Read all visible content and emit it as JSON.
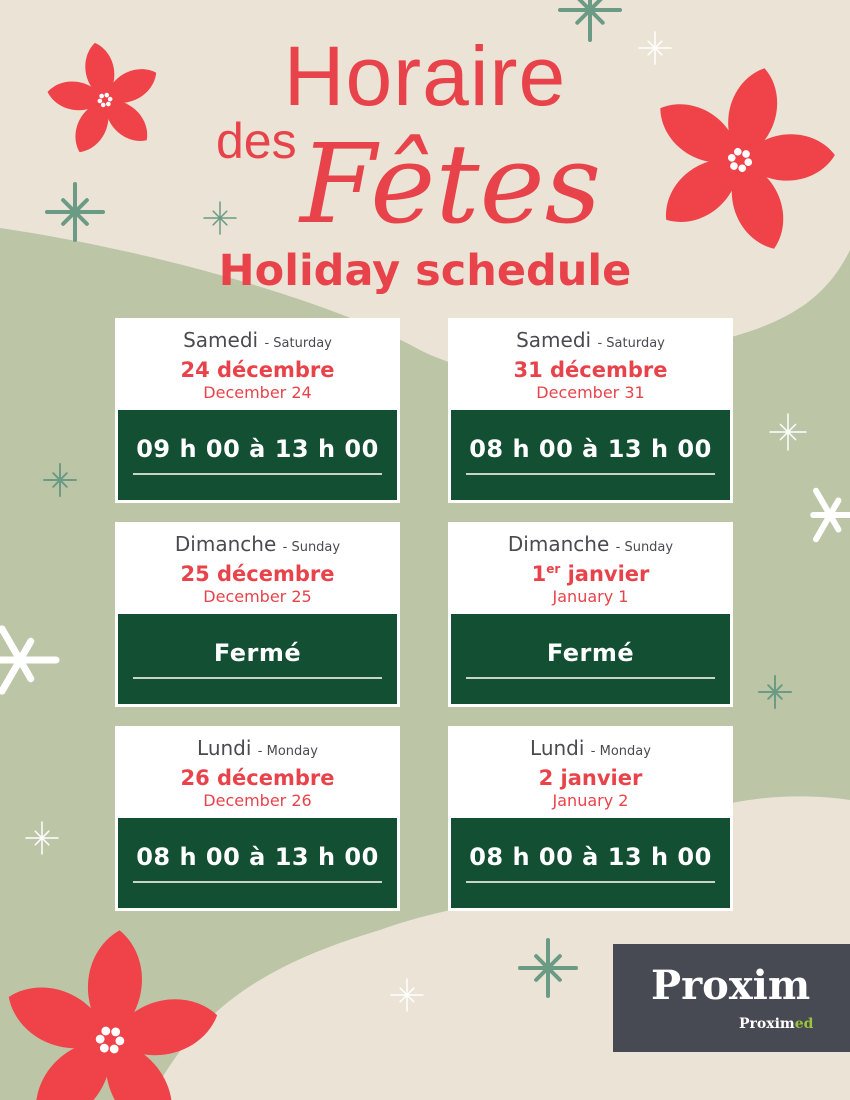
{
  "title": {
    "line1": "Horaire",
    "line2a": "des",
    "line2b": "Fêtes",
    "subtitle": "Holiday schedule"
  },
  "colors": {
    "accent_red": "#e8434a",
    "card_green": "#124f33",
    "background": "#ebe4d6",
    "blob_green": "#bcc6a6",
    "logo_bg": "#474a53",
    "logo_green": "#9bc43c"
  },
  "cards": [
    {
      "day_fr": "Samedi",
      "day_en": "- Saturday",
      "date_fr": "24 décembre",
      "date_sup": "",
      "date_fr_rest": "",
      "date_en": "December 24",
      "hours": "09 h 00 à 13 h 00"
    },
    {
      "day_fr": "Samedi",
      "day_en": "- Saturday",
      "date_fr": "31 décembre",
      "date_sup": "",
      "date_fr_rest": "",
      "date_en": "December 31",
      "hours": "08 h 00 à 13 h 00"
    },
    {
      "day_fr": "Dimanche",
      "day_en": "- Sunday",
      "date_fr": "25 décembre",
      "date_sup": "",
      "date_fr_rest": "",
      "date_en": "December 25",
      "hours": "Fermé"
    },
    {
      "day_fr": "Dimanche",
      "day_en": "- Sunday",
      "date_fr": "1",
      "date_sup": "er",
      "date_fr_rest": " janvier",
      "date_en": "January 1",
      "hours": "Fermé"
    },
    {
      "day_fr": "Lundi",
      "day_en": "- Monday",
      "date_fr": "26 décembre",
      "date_sup": "",
      "date_fr_rest": "",
      "date_en": "December 26",
      "hours": "08 h 00 à 13 h 00"
    },
    {
      "day_fr": "Lundi",
      "day_en": "- Monday",
      "date_fr": "2 janvier",
      "date_sup": "",
      "date_fr_rest": "",
      "date_en": "January 2",
      "hours": "08 h 00 à 13 h 00"
    }
  ],
  "logo": {
    "brand": "Proxim",
    "sub_a": "Prox",
    "sub_b": "im",
    "sub_c": "ed"
  },
  "icons": [
    "poinsettia-icon",
    "snowflake-icon",
    "sparkle-icon"
  ]
}
